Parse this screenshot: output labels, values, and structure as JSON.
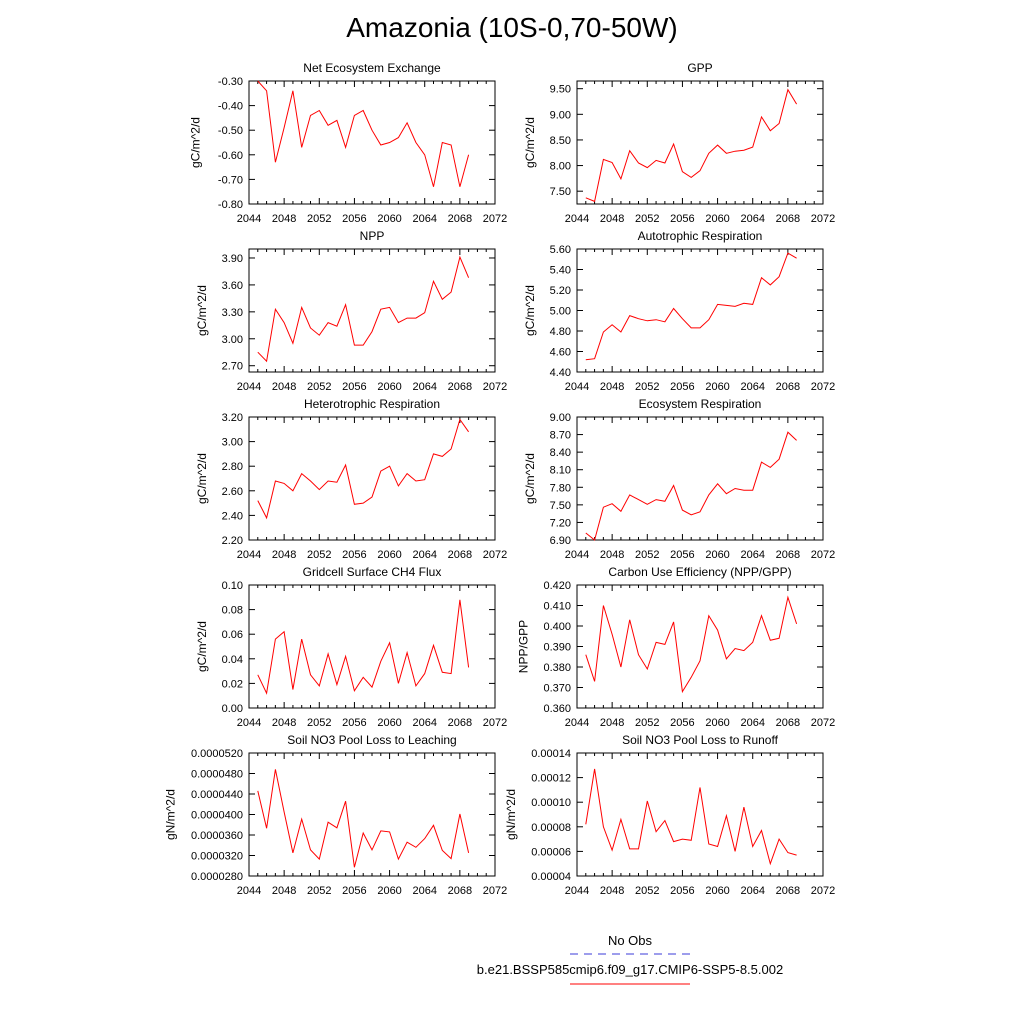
{
  "title": "Amazonia (10S-0,70-50W)",
  "legend": {
    "obs_label": "No Obs",
    "obs_color": "#3b3bd9",
    "case_label": "b.e21.BSSP585cmip6.f09_g17.CMIP6-SSP5-8.5.002",
    "case_color": "#ff0000"
  },
  "chart_data": [
    {
      "type": "line",
      "title": "Net Ecosystem Exchange",
      "ylabel": "gC/m^2/d",
      "xlim": [
        2044,
        2072
      ],
      "xticks": [
        "2044",
        "2048",
        "2052",
        "2056",
        "2060",
        "2064",
        "2068",
        "2072"
      ],
      "ylim": [
        -0.8,
        -0.3
      ],
      "yticks": [
        "-0.80",
        "-0.70",
        "-0.60",
        "-0.50",
        "-0.40",
        "-0.30"
      ],
      "x": [
        2045,
        2046,
        2047,
        2048,
        2049,
        2050,
        2051,
        2052,
        2053,
        2054,
        2055,
        2056,
        2057,
        2058,
        2059,
        2060,
        2061,
        2062,
        2063,
        2064,
        2065,
        2066,
        2067,
        2068,
        2069
      ],
      "y": [
        -0.3,
        -0.34,
        -0.63,
        -0.49,
        -0.34,
        -0.57,
        -0.44,
        -0.42,
        -0.48,
        -0.46,
        -0.57,
        -0.44,
        -0.42,
        -0.5,
        -0.56,
        -0.55,
        -0.53,
        -0.47,
        -0.55,
        -0.6,
        -0.73,
        -0.55,
        -0.56,
        -0.73,
        -0.6
      ],
      "color": "#ff0000"
    },
    {
      "type": "line",
      "title": "GPP",
      "ylabel": "gC/m^2/d",
      "xlim": [
        2044,
        2072
      ],
      "xticks": [
        "2044",
        "2048",
        "2052",
        "2056",
        "2060",
        "2064",
        "2068",
        "2072"
      ],
      "ylim": [
        7.25,
        9.65
      ],
      "yticks": [
        "7.50",
        "8.00",
        "8.50",
        "9.00",
        "9.50"
      ],
      "x": [
        2045,
        2046,
        2047,
        2048,
        2049,
        2050,
        2051,
        2052,
        2053,
        2054,
        2055,
        2056,
        2057,
        2058,
        2059,
        2060,
        2061,
        2062,
        2063,
        2064,
        2065,
        2066,
        2067,
        2068,
        2069
      ],
      "y": [
        7.37,
        7.3,
        8.12,
        8.06,
        7.74,
        8.29,
        8.05,
        7.96,
        8.1,
        8.05,
        8.42,
        7.88,
        7.77,
        7.9,
        8.24,
        8.4,
        8.24,
        8.28,
        8.3,
        8.36,
        8.95,
        8.68,
        8.82,
        9.48,
        9.2
      ],
      "color": "#ff0000"
    },
    {
      "type": "line",
      "title": "NPP",
      "ylabel": "gC/m^2/d",
      "xlim": [
        2044,
        2072
      ],
      "xticks": [
        "2044",
        "2048",
        "2052",
        "2056",
        "2060",
        "2064",
        "2068",
        "2072"
      ],
      "ylim": [
        2.63,
        4.0
      ],
      "yticks": [
        "2.70",
        "3.00",
        "3.30",
        "3.60",
        "3.90"
      ],
      "x": [
        2045,
        2046,
        2047,
        2048,
        2049,
        2050,
        2051,
        2052,
        2053,
        2054,
        2055,
        2056,
        2057,
        2058,
        2059,
        2060,
        2061,
        2062,
        2063,
        2064,
        2065,
        2066,
        2067,
        2068,
        2069
      ],
      "y": [
        2.85,
        2.75,
        3.33,
        3.18,
        2.95,
        3.35,
        3.12,
        3.04,
        3.18,
        3.14,
        3.38,
        2.93,
        2.93,
        3.08,
        3.33,
        3.35,
        3.18,
        3.23,
        3.23,
        3.29,
        3.64,
        3.44,
        3.52,
        3.91,
        3.68
      ],
      "color": "#ff0000"
    },
    {
      "type": "line",
      "title": "Autotrophic Respiration",
      "ylabel": "gC/m^2/d",
      "xlim": [
        2044,
        2072
      ],
      "xticks": [
        "2044",
        "2048",
        "2052",
        "2056",
        "2060",
        "2064",
        "2068",
        "2072"
      ],
      "ylim": [
        4.4,
        5.6
      ],
      "yticks": [
        "4.40",
        "4.60",
        "4.80",
        "5.00",
        "5.20",
        "5.40",
        "5.60"
      ],
      "x": [
        2045,
        2046,
        2047,
        2048,
        2049,
        2050,
        2051,
        2052,
        2053,
        2054,
        2055,
        2056,
        2057,
        2058,
        2059,
        2060,
        2061,
        2062,
        2063,
        2064,
        2065,
        2066,
        2067,
        2068,
        2069
      ],
      "y": [
        4.52,
        4.53,
        4.79,
        4.86,
        4.79,
        4.95,
        4.92,
        4.9,
        4.91,
        4.89,
        5.02,
        4.92,
        4.83,
        4.83,
        4.91,
        5.06,
        5.05,
        5.04,
        5.07,
        5.06,
        5.32,
        5.25,
        5.33,
        5.56,
        5.51
      ],
      "color": "#ff0000"
    },
    {
      "type": "line",
      "title": "Heterotrophic Respiration",
      "ylabel": "gC/m^2/d",
      "xlim": [
        2044,
        2072
      ],
      "xticks": [
        "2044",
        "2048",
        "2052",
        "2056",
        "2060",
        "2064",
        "2068",
        "2072"
      ],
      "ylim": [
        2.2,
        3.2
      ],
      "yticks": [
        "2.20",
        "2.40",
        "2.60",
        "2.80",
        "3.00",
        "3.20"
      ],
      "x": [
        2045,
        2046,
        2047,
        2048,
        2049,
        2050,
        2051,
        2052,
        2053,
        2054,
        2055,
        2056,
        2057,
        2058,
        2059,
        2060,
        2061,
        2062,
        2063,
        2064,
        2065,
        2066,
        2067,
        2068,
        2069
      ],
      "y": [
        2.52,
        2.38,
        2.68,
        2.66,
        2.6,
        2.74,
        2.68,
        2.61,
        2.68,
        2.67,
        2.81,
        2.49,
        2.5,
        2.55,
        2.76,
        2.8,
        2.64,
        2.74,
        2.68,
        2.69,
        2.9,
        2.88,
        2.94,
        3.18,
        3.08
      ],
      "color": "#ff0000"
    },
    {
      "type": "line",
      "title": "Ecosystem Respiration",
      "ylabel": "gC/m^2/d",
      "xlim": [
        2044,
        2072
      ],
      "xticks": [
        "2044",
        "2048",
        "2052",
        "2056",
        "2060",
        "2064",
        "2068",
        "2072"
      ],
      "ylim": [
        6.9,
        9.0
      ],
      "yticks": [
        "6.90",
        "7.20",
        "7.50",
        "7.80",
        "8.10",
        "8.40",
        "8.70",
        "9.00"
      ],
      "x": [
        2045,
        2046,
        2047,
        2048,
        2049,
        2050,
        2051,
        2052,
        2053,
        2054,
        2055,
        2056,
        2057,
        2058,
        2059,
        2060,
        2061,
        2062,
        2063,
        2064,
        2065,
        2066,
        2067,
        2068,
        2069
      ],
      "y": [
        7.02,
        6.9,
        7.46,
        7.52,
        7.39,
        7.67,
        7.59,
        7.51,
        7.59,
        7.56,
        7.83,
        7.41,
        7.33,
        7.38,
        7.67,
        7.86,
        7.69,
        7.78,
        7.75,
        7.75,
        8.23,
        8.14,
        8.28,
        8.74,
        8.6
      ],
      "color": "#ff0000"
    },
    {
      "type": "line",
      "title": "Gridcell Surface CH4 Flux",
      "ylabel": "gC/m^2/d",
      "xlim": [
        2044,
        2072
      ],
      "xticks": [
        "2044",
        "2048",
        "2052",
        "2056",
        "2060",
        "2064",
        "2068",
        "2072"
      ],
      "ylim": [
        0.0,
        0.1
      ],
      "yticks": [
        "0.00",
        "0.02",
        "0.04",
        "0.06",
        "0.08",
        "0.10"
      ],
      "x": [
        2045,
        2046,
        2047,
        2048,
        2049,
        2050,
        2051,
        2052,
        2053,
        2054,
        2055,
        2056,
        2057,
        2058,
        2059,
        2060,
        2061,
        2062,
        2063,
        2064,
        2065,
        2066,
        2067,
        2068,
        2069
      ],
      "y": [
        0.027,
        0.012,
        0.056,
        0.062,
        0.015,
        0.056,
        0.027,
        0.018,
        0.044,
        0.019,
        0.042,
        0.014,
        0.025,
        0.017,
        0.038,
        0.053,
        0.02,
        0.045,
        0.018,
        0.028,
        0.051,
        0.029,
        0.028,
        0.088,
        0.033
      ],
      "color": "#ff0000"
    },
    {
      "type": "line",
      "title": "Carbon Use Efficiency (NPP/GPP)",
      "ylabel": "NPP/GPP",
      "xlim": [
        2044,
        2072
      ],
      "xticks": [
        "2044",
        "2048",
        "2052",
        "2056",
        "2060",
        "2064",
        "2068",
        "2072"
      ],
      "ylim": [
        0.36,
        0.42
      ],
      "yticks": [
        "0.360",
        "0.370",
        "0.380",
        "0.390",
        "0.400",
        "0.410",
        "0.420"
      ],
      "x": [
        2045,
        2046,
        2047,
        2048,
        2049,
        2050,
        2051,
        2052,
        2053,
        2054,
        2055,
        2056,
        2057,
        2058,
        2059,
        2060,
        2061,
        2062,
        2063,
        2064,
        2065,
        2066,
        2067,
        2068,
        2069
      ],
      "y": [
        0.386,
        0.373,
        0.41,
        0.396,
        0.38,
        0.403,
        0.386,
        0.379,
        0.392,
        0.391,
        0.402,
        0.368,
        0.375,
        0.383,
        0.405,
        0.398,
        0.384,
        0.389,
        0.388,
        0.392,
        0.405,
        0.393,
        0.394,
        0.414,
        0.401
      ],
      "color": "#ff0000"
    },
    {
      "type": "line",
      "title": "Soil NO3 Pool Loss to Leaching",
      "ylabel": "gN/m^2/d",
      "xlim": [
        2044,
        2072
      ],
      "xticks": [
        "2044",
        "2048",
        "2052",
        "2056",
        "2060",
        "2064",
        "2068",
        "2072"
      ],
      "ylim": [
        2.8e-05,
        5.2e-05
      ],
      "yticks": [
        "0.0000280",
        "0.0000320",
        "0.0000360",
        "0.0000400",
        "0.0000440",
        "0.0000480",
        "0.0000520"
      ],
      "x": [
        2045,
        2046,
        2047,
        2048,
        2049,
        2050,
        2051,
        2052,
        2053,
        2054,
        2055,
        2056,
        2057,
        2058,
        2059,
        2060,
        2061,
        2062,
        2063,
        2064,
        2065,
        2066,
        2067,
        2068,
        2069
      ],
      "y": [
        4.46e-05,
        3.73e-05,
        4.88e-05,
        4.05e-05,
        3.25e-05,
        3.91e-05,
        3.31e-05,
        3.13e-05,
        3.85e-05,
        3.74e-05,
        4.26e-05,
        2.97e-05,
        3.64e-05,
        3.31e-05,
        3.68e-05,
        3.66e-05,
        3.13e-05,
        3.46e-05,
        3.36e-05,
        3.53e-05,
        3.79e-05,
        3.3e-05,
        3.14e-05,
        4.01e-05,
        3.25e-05
      ],
      "color": "#ff0000"
    },
    {
      "type": "line",
      "title": "Soil NO3 Pool Loss to Runoff",
      "ylabel": "gN/m^2/d",
      "xlim": [
        2044,
        2072
      ],
      "xticks": [
        "2044",
        "2048",
        "2052",
        "2056",
        "2060",
        "2064",
        "2068",
        "2072"
      ],
      "ylim": [
        4e-05,
        0.00014
      ],
      "yticks": [
        "0.00004",
        "0.00006",
        "0.00008",
        "0.00010",
        "0.00012",
        "0.00014"
      ],
      "x": [
        2045,
        2046,
        2047,
        2048,
        2049,
        2050,
        2051,
        2052,
        2053,
        2054,
        2055,
        2056,
        2057,
        2058,
        2059,
        2060,
        2061,
        2062,
        2063,
        2064,
        2065,
        2066,
        2067,
        2068,
        2069
      ],
      "y": [
        8.2e-05,
        0.000127,
        8e-05,
        6.1e-05,
        8.6e-05,
        6.2e-05,
        6.2e-05,
        0.000101,
        7.6e-05,
        8.5e-05,
        6.8e-05,
        7e-05,
        6.9e-05,
        0.000112,
        6.6e-05,
        6.4e-05,
        8.9e-05,
        6e-05,
        9.6e-05,
        6.4e-05,
        7.7e-05,
        5e-05,
        7e-05,
        5.9e-05,
        5.7e-05
      ],
      "color": "#ff0000"
    }
  ]
}
